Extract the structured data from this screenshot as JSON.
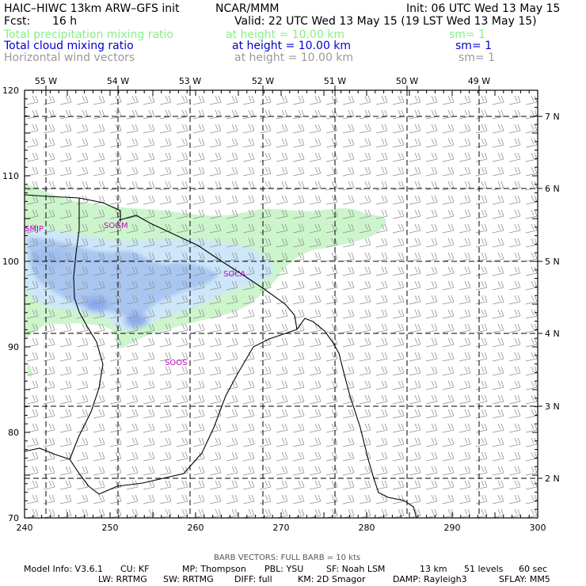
{
  "header": {
    "model": "HAIC–HIWC 13km ARW–GFS init",
    "org": "NCAR/MMM",
    "init": "Init: 06 UTC Wed 13 May 15",
    "fcst_label": "Fcst:",
    "fcst_value": "16 h",
    "valid": "Valid: 22 UTC Wed 13 May 15 (19 LST Wed 13 May 15)"
  },
  "fields": [
    {
      "name": "Total precipitation mixing ratio",
      "height": "at height = 10.00 km",
      "sm": "sm= 1",
      "color": "#88ee88"
    },
    {
      "name": "Total cloud mixing ratio",
      "height": "at height = 10.00 km",
      "sm": "sm= 1",
      "color": "#0000cc"
    },
    {
      "name": "Horizontal wind vectors",
      "height": "at height = 10.00 km",
      "sm": "sm= 1",
      "color": "#999999"
    }
  ],
  "colors": {
    "precip": "#ccf5cc",
    "cloud_light": "#cde6fa",
    "cloud_mid": "#a9c6f0",
    "cloud_dark": "#8aa8ea",
    "barb": "#8f8f8f",
    "stations": "#cc00cc"
  },
  "axes": {
    "bottom_ticks": [
      "240",
      "250",
      "260",
      "270",
      "280",
      "290",
      "300"
    ],
    "left_ticks": [
      "70",
      "80",
      "90",
      "100",
      "110",
      "120"
    ],
    "lon_labels": [
      "55 W",
      "54 W",
      "53 W",
      "52 W",
      "51 W",
      "50 W",
      "49 W"
    ],
    "lat_labels": [
      "7 N",
      "6 N",
      "5 N",
      "4 N",
      "3 N",
      "2 N"
    ]
  },
  "stations": [
    "SMJP",
    "SOGM",
    "SOCA",
    "SOOS"
  ],
  "footer": {
    "barb": "BARB VECTORS:  FULL BARB = 10 kts",
    "line1": [
      "Model Info: V3.6.1",
      "CU: KF",
      "MP: Thompson",
      "PBL: YSU",
      "SF: Noah LSM",
      "13 km",
      "51 levels",
      "60 sec"
    ],
    "line2": [
      "LW: RRTMG",
      "SW: RRTMG",
      "DIFF: full",
      "KM: 2D Smagor",
      "DAMP: Rayleigh3",
      "SFLAY: MM5"
    ]
  }
}
